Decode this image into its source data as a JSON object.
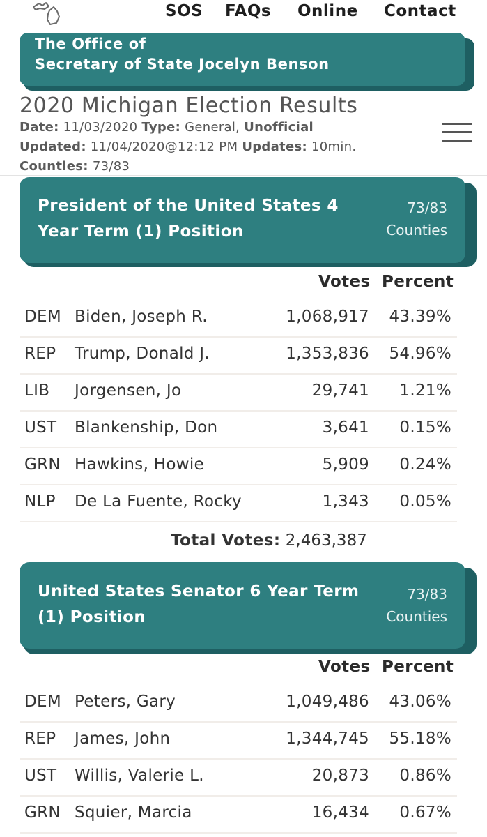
{
  "nav": {
    "links": [
      "SOS",
      "FAQs",
      "Online",
      "Contact"
    ]
  },
  "banner": {
    "line1": "The Office of",
    "line2": "Secretary of State Jocelyn Benson"
  },
  "page": {
    "title": "2020 Michigan Election Results",
    "date_label": "Date:",
    "date_value": "11/03/2020",
    "type_label": "Type:",
    "type_value": "General,",
    "status": "Unofficial",
    "updated_label": "Updated:",
    "updated_value": "11/04/2020@12:12 PM",
    "updates_label": "Updates:",
    "updates_value": "10min.",
    "counties_label": "Counties:",
    "counties_value": "73/83"
  },
  "races": [
    {
      "title": "President of the United States 4 Year Term (1) Position",
      "counties_count": "73/83",
      "counties_label": "Counties",
      "votes_header": "Votes",
      "percent_header": "Percent",
      "candidates": [
        {
          "party": "DEM",
          "name": "Biden, Joseph R.",
          "votes": "1,068,917",
          "percent": "43.39%"
        },
        {
          "party": "REP",
          "name": "Trump, Donald J.",
          "votes": "1,353,836",
          "percent": "54.96%"
        },
        {
          "party": "LIB",
          "name": "Jorgensen, Jo",
          "votes": "29,741",
          "percent": "1.21%"
        },
        {
          "party": "UST",
          "name": "Blankenship, Don",
          "votes": "3,641",
          "percent": "0.15%"
        },
        {
          "party": "GRN",
          "name": "Hawkins, Howie",
          "votes": "5,909",
          "percent": "0.24%"
        },
        {
          "party": "NLP",
          "name": "De La Fuente, Rocky",
          "votes": "1,343",
          "percent": "0.05%"
        }
      ],
      "total_label": "Total Votes:",
      "total_value": "2,463,387"
    },
    {
      "title": "United States Senator 6 Year Term (1) Position",
      "counties_count": "73/83",
      "counties_label": "Counties",
      "votes_header": "Votes",
      "percent_header": "Percent",
      "candidates": [
        {
          "party": "DEM",
          "name": "Peters, Gary",
          "votes": "1,049,486",
          "percent": "43.06%"
        },
        {
          "party": "REP",
          "name": "James, John",
          "votes": "1,344,745",
          "percent": "55.18%"
        },
        {
          "party": "UST",
          "name": "Willis, Valerie L.",
          "votes": "20,873",
          "percent": "0.86%"
        },
        {
          "party": "GRN",
          "name": "Squier, Marcia",
          "votes": "16,434",
          "percent": "0.67%"
        }
      ]
    }
  ],
  "icons": {
    "logo": "michigan-outline-icon",
    "menu": "hamburger-menu-icon"
  },
  "colors": {
    "teal": "#2e7f80",
    "teal_dark": "#1e5f62"
  }
}
